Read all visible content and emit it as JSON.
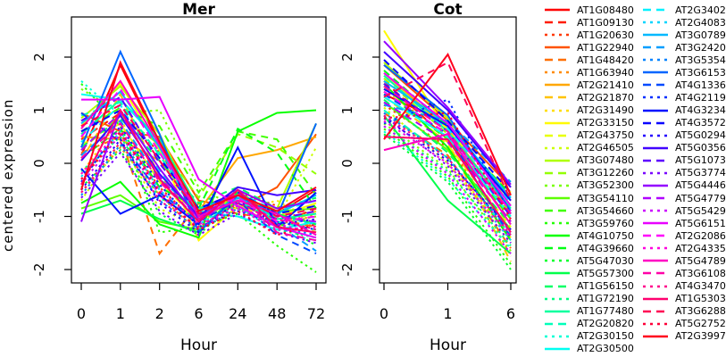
{
  "figure_title": "",
  "chart_data": {
    "type": "line",
    "ylabel": "centered expression",
    "y_ticks": [
      -2,
      -1,
      0,
      1,
      2
    ],
    "y_tick_labels": [
      "-2",
      "-1",
      "0",
      "1",
      "2"
    ],
    "ylim": [
      -2.3,
      2.7
    ],
    "grid": false,
    "legend_position": "right",
    "legend_columns": [
      28,
      27
    ],
    "panels": [
      {
        "key": "mer",
        "title": "Mer",
        "xlabel": "Hour",
        "x_hours": [
          0,
          1,
          2,
          6,
          24,
          48,
          72
        ],
        "x_tick_labels": [
          "0",
          "1",
          "2",
          "6",
          "24",
          "48",
          "72"
        ]
      },
      {
        "key": "cot",
        "title": "Cot",
        "xlabel": "Hour",
        "x_hours": [
          0,
          1,
          6
        ],
        "x_tick_labels": [
          "0",
          "1",
          "6"
        ]
      }
    ],
    "series": [
      {
        "label": "AT1G08480",
        "color": "#FF0000",
        "linetype": "solid",
        "mer": [
          0.15,
          1.85,
          0.35,
          -0.85,
          -0.55,
          -0.95,
          -0.5
        ],
        "cot": [
          1.3,
          0.75,
          -0.7
        ]
      },
      {
        "label": "AT1G09130",
        "color": "#FF1C00",
        "linetype": "dashed",
        "mer": [
          0.45,
          0.95,
          0.2,
          -0.95,
          -0.7,
          -1.15,
          -0.85
        ],
        "cot": [
          1.55,
          0.45,
          -1.1
        ]
      },
      {
        "label": "AT1G20630",
        "color": "#FF3800",
        "linetype": "dotted",
        "mer": [
          -0.3,
          0.55,
          -0.45,
          -1.15,
          -0.55,
          -0.8,
          -1.2
        ],
        "cot": [
          1.1,
          0.3,
          -1.3
        ]
      },
      {
        "label": "AT1G22940",
        "color": "#FF5300",
        "linetype": "solid",
        "mer": [
          0.95,
          0.6,
          0.5,
          -0.7,
          -0.85,
          -0.45,
          0.55
        ],
        "cot": [
          1.85,
          0.8,
          -0.45
        ]
      },
      {
        "label": "AT1G48420",
        "color": "#FF6F00",
        "linetype": "dashed",
        "mer": [
          0.2,
          0.5,
          -1.7,
          -0.75,
          -0.95,
          -1.05,
          -1.2
        ],
        "cot": [
          0.95,
          0.15,
          -1.6
        ]
      },
      {
        "label": "AT1G63940",
        "color": "#FF8B00",
        "linetype": "dotted",
        "mer": [
          -0.55,
          0.3,
          -0.6,
          -1.3,
          -0.75,
          -1.25,
          -0.95
        ],
        "cot": [
          1.4,
          0.5,
          -1.75
        ]
      },
      {
        "label": "AT2G21410",
        "color": "#FFA700",
        "linetype": "solid",
        "mer": [
          0.5,
          0.45,
          0.05,
          -0.9,
          0.1,
          0.25,
          0.5
        ],
        "cot": [
          1.7,
          0.65,
          -0.9
        ]
      },
      {
        "label": "AT2G21870",
        "color": "#FFC300",
        "linetype": "dashed",
        "mer": [
          0.05,
          1.3,
          -0.25,
          -1.0,
          -0.75,
          -1.2,
          -0.9
        ],
        "cot": [
          1.25,
          0.4,
          -1.85
        ]
      },
      {
        "label": "AT2G31490",
        "color": "#FFDE00",
        "linetype": "dotted",
        "mer": [
          -0.2,
          0.85,
          -0.55,
          -1.25,
          -0.9,
          -0.7,
          -1.1
        ],
        "cot": [
          0.85,
          0.05,
          -1.4
        ]
      },
      {
        "label": "AT2G33150",
        "color": "#FFFA00",
        "linetype": "solid",
        "mer": [
          0.7,
          1.5,
          0.25,
          -1.45,
          -0.8,
          -1.0,
          -0.75
        ],
        "cot": [
          2.5,
          0.6,
          -0.55
        ]
      },
      {
        "label": "AT2G43750",
        "color": "#E8FF00",
        "linetype": "dashed",
        "mer": [
          0.35,
          0.75,
          -0.35,
          -1.1,
          -0.6,
          -0.95,
          -1.3
        ],
        "cot": [
          1.45,
          0.35,
          -1.2
        ]
      },
      {
        "label": "AT2G46505",
        "color": "#CCFF00",
        "linetype": "dotted",
        "mer": [
          -0.7,
          0.4,
          -0.85,
          -1.2,
          -0.5,
          -1.05,
          0.3
        ],
        "cot": [
          1.05,
          0.0,
          -1.5
        ]
      },
      {
        "label": "AT3G07480",
        "color": "#B0FF00",
        "linetype": "solid",
        "mer": [
          0.85,
          1.45,
          0.55,
          -0.95,
          -0.65,
          -0.85,
          0.75
        ],
        "cot": [
          1.9,
          0.85,
          -0.8
        ]
      },
      {
        "label": "AT3G12260",
        "color": "#94FF00",
        "linetype": "dashed",
        "mer": [
          0.25,
          0.9,
          0.35,
          -0.65,
          0.55,
          0.3,
          -0.2
        ],
        "cot": [
          1.6,
          0.55,
          -0.95
        ]
      },
      {
        "label": "AT3G52300",
        "color": "#79FF00",
        "linetype": "dotted",
        "mer": [
          1.4,
          0.95,
          1.0,
          -0.45,
          -0.85,
          -1.15,
          -1.0
        ],
        "cot": [
          0.75,
          -0.1,
          -1.65
        ]
      },
      {
        "label": "AT3G54110",
        "color": "#5DFF00",
        "linetype": "solid",
        "mer": [
          -0.85,
          -0.6,
          -1.1,
          -1.25,
          -0.7,
          -0.9,
          -0.85
        ],
        "cot": [
          1.15,
          0.25,
          -1.25
        ]
      },
      {
        "label": "AT3G54660",
        "color": "#41FF00",
        "linetype": "dashed",
        "mer": [
          0.6,
          1.05,
          0.7,
          -0.55,
          0.6,
          0.45,
          -0.6
        ],
        "cot": [
          1.35,
          0.45,
          -1.05
        ]
      },
      {
        "label": "AT3G59760",
        "color": "#25FF00",
        "linetype": "dotted",
        "mer": [
          1.5,
          0.7,
          -1.3,
          -1.2,
          -0.95,
          -1.55,
          -2.05
        ],
        "cot": [
          0.65,
          -0.25,
          -1.9
        ]
      },
      {
        "label": "AT4G10750",
        "color": "#09FF00",
        "linetype": "solid",
        "mer": [
          -0.75,
          -0.35,
          -1.15,
          -1.4,
          0.6,
          0.95,
          1.0
        ],
        "cot": [
          1.5,
          0.3,
          -1.45
        ]
      },
      {
        "label": "AT4G39660",
        "color": "#00FF13",
        "linetype": "dashed",
        "mer": [
          0.1,
          0.65,
          -0.45,
          -0.85,
          0.65,
          0.2,
          -0.85
        ],
        "cot": [
          1.75,
          0.7,
          -0.6
        ]
      },
      {
        "label": "AT5G47030",
        "color": "#00FF2E",
        "linetype": "dotted",
        "mer": [
          -0.45,
          0.25,
          -0.95,
          -1.35,
          -0.65,
          -1.1,
          -1.55
        ],
        "cot": [
          0.55,
          -0.35,
          -2.0
        ]
      },
      {
        "label": "AT5G57300",
        "color": "#00FF4A",
        "linetype": "solid",
        "mer": [
          -0.95,
          -0.7,
          -1.05,
          -1.3,
          -0.55,
          -0.95,
          -1.15
        ],
        "cot": [
          0.9,
          -0.7,
          -1.7
        ]
      },
      {
        "label": "AT1G56150",
        "color": "#00FF66",
        "linetype": "dashed",
        "mer": [
          0.3,
          0.85,
          0.05,
          -0.75,
          -0.45,
          -0.85,
          -0.65
        ],
        "cot": [
          1.2,
          0.2,
          -1.15
        ]
      },
      {
        "label": "AT1G72190",
        "color": "#00FF82",
        "linetype": "dotted",
        "mer": [
          -0.15,
          0.5,
          -0.65,
          -1.05,
          -0.85,
          -1.25,
          -1.4
        ],
        "cot": [
          0.7,
          -0.15,
          -1.55
        ]
      },
      {
        "label": "AT1G77480",
        "color": "#00FF9E",
        "linetype": "solid",
        "mer": [
          0.55,
          1.2,
          0.45,
          -0.85,
          -0.6,
          -1.05,
          -0.95
        ],
        "cot": [
          1.65,
          0.6,
          -0.85
        ]
      },
      {
        "label": "AT2G20820",
        "color": "#00FFB9",
        "linetype": "dashed",
        "mer": [
          0.9,
          1.15,
          0.15,
          -0.95,
          -0.7,
          -1.1,
          -1.25
        ],
        "cot": [
          1.0,
          0.1,
          -1.35
        ]
      },
      {
        "label": "AT2G30150",
        "color": "#00FFD5",
        "linetype": "dotted",
        "mer": [
          1.55,
          0.9,
          0.2,
          -1.1,
          -0.8,
          -1.3,
          -1.45
        ],
        "cot": [
          0.6,
          -0.3,
          -1.6
        ]
      },
      {
        "label": "AT2G30500",
        "color": "#00FFF1",
        "linetype": "solid",
        "mer": [
          1.3,
          1.2,
          0.4,
          -0.9,
          -1.0,
          -1.25,
          -1.1
        ],
        "cot": [
          1.25,
          0.5,
          -1.0
        ]
      },
      {
        "label": "AT2G3402",
        "color": "#00F1FF",
        "linetype": "dashed",
        "mer": [
          0.4,
          1.1,
          -0.15,
          -1.0,
          -0.55,
          -0.9,
          -0.7
        ],
        "cot": [
          1.45,
          0.65,
          -0.75
        ]
      },
      {
        "label": "AT2G4083",
        "color": "#00D5FF",
        "linetype": "dotted",
        "mer": [
          -0.25,
          0.6,
          -0.5,
          -1.15,
          -0.75,
          -1.0,
          -1.15
        ],
        "cot": [
          0.8,
          0.0,
          -1.45
        ]
      },
      {
        "label": "AT3G0789",
        "color": "#00B9FF",
        "linetype": "solid",
        "mer": [
          0.75,
          1.35,
          0.3,
          -1.05,
          -0.65,
          -0.95,
          -0.6
        ],
        "cot": [
          1.55,
          0.75,
          -0.65
        ]
      },
      {
        "label": "AT3G2420",
        "color": "#009EFF",
        "linetype": "dashed",
        "mer": [
          0.15,
          0.8,
          -0.3,
          -0.9,
          -0.5,
          -1.15,
          -1.65
        ],
        "cot": [
          1.1,
          0.8,
          -0.35
        ]
      },
      {
        "label": "AT3G5354",
        "color": "#0082FF",
        "linetype": "dotted",
        "mer": [
          -0.6,
          0.35,
          -0.7,
          -1.25,
          -0.85,
          -1.2,
          -1.35
        ],
        "cot": [
          0.95,
          0.1,
          -1.3
        ]
      },
      {
        "label": "AT3G6153",
        "color": "#0066FF",
        "linetype": "solid",
        "mer": [
          0.3,
          2.1,
          0.55,
          -1.3,
          -0.6,
          -1.0,
          0.75
        ],
        "cot": [
          1.85,
          0.9,
          -0.9
        ]
      },
      {
        "label": "AT4G1336",
        "color": "#004AFF",
        "linetype": "dashed",
        "mer": [
          0.95,
          0.4,
          -0.55,
          -1.1,
          -0.7,
          -1.35,
          -1.7
        ],
        "cot": [
          1.3,
          0.55,
          -1.4
        ]
      },
      {
        "label": "AT4G2119",
        "color": "#002EFF",
        "linetype": "dotted",
        "mer": [
          -0.35,
          0.7,
          -0.4,
          -1.2,
          -0.9,
          -1.1,
          -1.25
        ],
        "cot": [
          0.75,
          1.2,
          -0.95
        ]
      },
      {
        "label": "AT4G3234",
        "color": "#0013FF",
        "linetype": "solid",
        "mer": [
          -0.1,
          -0.95,
          -0.6,
          -1.15,
          0.3,
          -1.2,
          -0.55
        ],
        "cot": [
          1.4,
          0.7,
          -0.7
        ]
      },
      {
        "label": "AT4G3572",
        "color": "#0900FF",
        "linetype": "dashed",
        "mer": [
          0.6,
          1.0,
          0.1,
          -0.85,
          -0.55,
          -0.95,
          -0.8
        ],
        "cot": [
          1.95,
          0.8,
          -0.55
        ]
      },
      {
        "label": "AT5G0294",
        "color": "#2500FF",
        "linetype": "dotted",
        "mer": [
          -0.5,
          0.45,
          -0.75,
          -1.3,
          -0.7,
          -1.15,
          -1.05
        ],
        "cot": [
          0.85,
          0.05,
          -1.25
        ]
      },
      {
        "label": "AT5G0356",
        "color": "#4100FF",
        "linetype": "solid",
        "mer": [
          0.05,
          0.9,
          -0.2,
          -1.0,
          -0.45,
          -0.6,
          -0.5
        ],
        "cot": [
          2.1,
          1.0,
          -0.45
        ]
      },
      {
        "label": "AT5G1073",
        "color": "#5D00FF",
        "linetype": "dashed",
        "mer": [
          0.8,
          1.25,
          0.0,
          -0.95,
          -0.75,
          -1.05,
          -0.9
        ],
        "cot": [
          1.5,
          0.6,
          -1.0
        ]
      },
      {
        "label": "AT5G3774",
        "color": "#7900FF",
        "linetype": "dotted",
        "mer": [
          -0.65,
          0.2,
          -0.9,
          -1.35,
          -0.95,
          -1.3,
          -1.5
        ],
        "cot": [
          0.9,
          -0.05,
          -1.5
        ]
      },
      {
        "label": "AT5G4446",
        "color": "#9400FF",
        "linetype": "solid",
        "mer": [
          -1.1,
          1.0,
          -0.1,
          -1.05,
          -0.5,
          -0.85,
          -0.7
        ],
        "cot": [
          2.3,
          1.05,
          -0.4
        ]
      },
      {
        "label": "AT5G4779",
        "color": "#B000FF",
        "linetype": "dashed",
        "mer": [
          0.25,
          0.95,
          -0.25,
          -1.1,
          -0.6,
          -1.0,
          -1.1
        ],
        "cot": [
          1.15,
          0.4,
          -1.1
        ]
      },
      {
        "label": "AT5G5429",
        "color": "#CC00FF",
        "linetype": "dotted",
        "mer": [
          -0.4,
          0.55,
          -0.6,
          -1.25,
          -0.8,
          -1.15,
          -1.3
        ],
        "cot": [
          0.7,
          -0.2,
          -1.7
        ]
      },
      {
        "label": "AT5G6151",
        "color": "#E800FF",
        "linetype": "solid",
        "mer": [
          1.2,
          1.2,
          1.25,
          -0.3,
          -0.8,
          -1.2,
          -1.4
        ],
        "cot": [
          1.7,
          0.75,
          -0.8
        ]
      },
      {
        "label": "AT2G2086",
        "color": "#FF00FA",
        "linetype": "dashed",
        "mer": [
          0.5,
          1.4,
          0.2,
          -0.9,
          -0.65,
          -1.1,
          -1.0
        ],
        "cot": [
          1.35,
          0.55,
          -0.9
        ]
      },
      {
        "label": "AT2G4335",
        "color": "#FF00DE",
        "linetype": "dotted",
        "mer": [
          -0.2,
          0.65,
          -0.5,
          -1.15,
          -0.85,
          -1.25,
          -1.2
        ],
        "cot": [
          0.8,
          0.0,
          -1.4
        ]
      },
      {
        "label": "AT5G4789",
        "color": "#FF00C3",
        "linetype": "solid",
        "mer": [
          0.65,
          1.55,
          0.35,
          -1.0,
          -0.7,
          -0.95,
          -1.35
        ],
        "cot": [
          0.25,
          0.55,
          -1.15
        ]
      },
      {
        "label": "AT3G6108",
        "color": "#FF00A7",
        "linetype": "dashed",
        "mer": [
          0.1,
          0.75,
          -0.35,
          -1.05,
          -0.55,
          -1.3,
          -1.45
        ],
        "cot": [
          1.45,
          0.6,
          -0.95
        ]
      },
      {
        "label": "AT4G3470",
        "color": "#FF008B",
        "linetype": "dotted",
        "mer": [
          -0.55,
          0.4,
          -0.7,
          -1.2,
          -0.75,
          -1.05,
          -1.25
        ],
        "cot": [
          0.9,
          0.1,
          -1.35
        ]
      },
      {
        "label": "AT1G5303",
        "color": "#FF006F",
        "linetype": "solid",
        "mer": [
          -0.4,
          1.0,
          -0.3,
          -1.1,
          -0.5,
          -1.2,
          -1.3
        ],
        "cot": [
          0.5,
          0.45,
          -1.3
        ]
      },
      {
        "label": "AT3G6288",
        "color": "#FF0053",
        "linetype": "dashed",
        "mer": [
          0.7,
          1.1,
          0.05,
          -0.95,
          -0.6,
          -1.0,
          -0.85
        ],
        "cot": [
          1.25,
          1.9,
          -0.7
        ]
      },
      {
        "label": "AT5G2752",
        "color": "#FF0038",
        "linetype": "dotted",
        "mer": [
          -0.3,
          0.6,
          -0.55,
          -1.25,
          -0.9,
          -1.35,
          -1.15
        ],
        "cot": [
          0.85,
          0.95,
          -1.05
        ]
      },
      {
        "label": "AT2G3997",
        "color": "#FF001C",
        "linetype": "solid",
        "mer": [
          -0.5,
          1.9,
          0.4,
          -0.9,
          -0.6,
          -0.9,
          -0.45
        ],
        "cot": [
          0.45,
          2.05,
          -0.6
        ]
      }
    ]
  }
}
